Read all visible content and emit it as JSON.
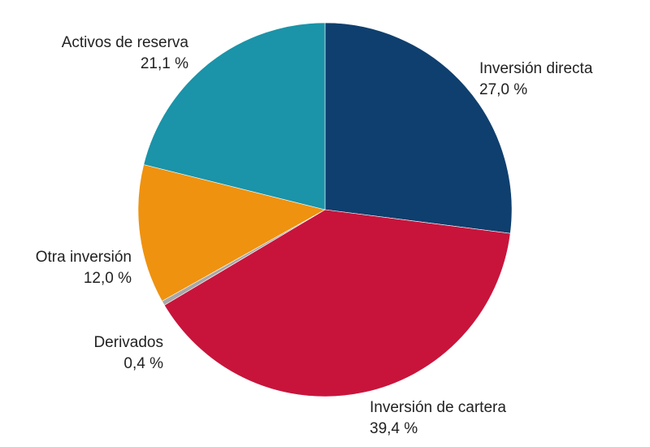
{
  "chart_data": {
    "type": "pie",
    "start_angle_deg": 0,
    "direction": "clockwise",
    "slices": [
      {
        "label": "Inversión directa",
        "value": 27.0,
        "value_text": "27,0 %",
        "color": "#0f3f6e"
      },
      {
        "label": "Inversión de cartera",
        "value": 39.4,
        "value_text": "39,4 %",
        "color": "#c8143b"
      },
      {
        "label": "Derivados",
        "value": 0.4,
        "value_text": "0,4 %",
        "color": "#a8a8a8"
      },
      {
        "label": "Otra inversión",
        "value": 12.0,
        "value_text": "12,0 %",
        "color": "#ef920f"
      },
      {
        "label": "Activos de reserva",
        "value": 21.1,
        "value_text": "21,1 %",
        "color": "#1b93a8"
      }
    ]
  }
}
